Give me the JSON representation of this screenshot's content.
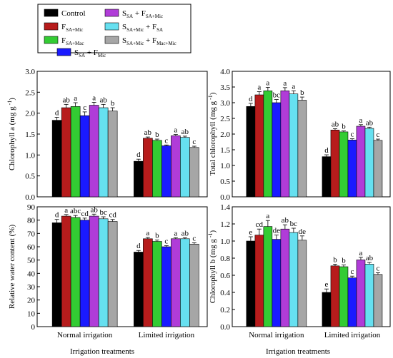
{
  "legend": {
    "entries": [
      {
        "text": "Control",
        "color": "#000000"
      },
      {
        "text": "F",
        "sub": "SA+Mic",
        "color": "#b71c1c"
      },
      {
        "text": "F",
        "sub": "SA+Mac",
        "color": "#33cc33"
      },
      {
        "text": "S",
        "sub": "SA",
        "text2": "+ F",
        "sub2": "Mic",
        "color": "#1a1aff"
      },
      {
        "text": "S",
        "sub": "SA",
        "text2": "+ F",
        "sub2": "SA+Mic",
        "color": "#b03cd8"
      },
      {
        "text": "S",
        "sub": "SA+Mic",
        "text2": "+ F",
        "sub2": "SA",
        "color": "#66e0f0"
      },
      {
        "text": "S",
        "sub": "SA+Mic",
        "text2": "+ F",
        "sub2": "Mac+Mic",
        "color": "#a6a6a6"
      }
    ]
  },
  "xlabel_left": "Irrigation treatments",
  "xlabel_right": "Irrigation treatments",
  "chart_data": [
    {
      "type": "bar",
      "ylabel": "Chlorophyll a (mg g -1)",
      "ylabel_main": "Chlorophyll a (mg g",
      "ylabel_sup": "-1",
      "ylabel_close": ")",
      "ylim": [
        0,
        3.0
      ],
      "yticks": [
        "0.0",
        "0.5",
        "1.0",
        "1.5",
        "2.0",
        "2.5",
        "3.0"
      ],
      "categories": [
        "Normal  irrigation",
        "Limited irrigation"
      ],
      "series": [
        {
          "name": "Control",
          "values": [
            1.83,
            0.85
          ],
          "errors": [
            0.07,
            0.05
          ],
          "labels": [
            "d",
            "d"
          ]
        },
        {
          "name": "FSA+Mic",
          "values": [
            2.13,
            1.4
          ],
          "errors": [
            0.08,
            0.03
          ],
          "labels": [
            "ab",
            "ab"
          ]
        },
        {
          "name": "FSA+Mac",
          "values": [
            2.16,
            1.35
          ],
          "errors": [
            0.09,
            0.03
          ],
          "labels": [
            "a",
            "b"
          ]
        },
        {
          "name": "SSA+FMic",
          "values": [
            1.94,
            1.22
          ],
          "errors": [
            0.09,
            0.02
          ],
          "labels": [
            "c",
            "c"
          ]
        },
        {
          "name": "SSA+FSA+Mic",
          "values": [
            2.19,
            1.46
          ],
          "errors": [
            0.07,
            0.03
          ],
          "labels": [
            "a",
            "a"
          ]
        },
        {
          "name": "SSA+Mic+FSA",
          "values": [
            2.13,
            1.42
          ],
          "errors": [
            0.08,
            0.03
          ],
          "labels": [
            "ab",
            "ab"
          ]
        },
        {
          "name": "SSA+Mic+FMac+Mic",
          "values": [
            2.05,
            1.18
          ],
          "errors": [
            0.08,
            0.03
          ],
          "labels": [
            "b",
            "c"
          ]
        }
      ]
    },
    {
      "type": "bar",
      "ylabel": "Total chlorophyll (mg g -1)",
      "ylabel_main": "Total chlorophyll (mg g",
      "ylabel_sup": "-1",
      "ylabel_close": ")",
      "ylim": [
        0,
        4.0
      ],
      "yticks": [
        "0.0",
        "0.5",
        "1.0",
        "1.5",
        "2.0",
        "2.5",
        "3.0",
        "3.5",
        "4.0"
      ],
      "categories": [
        "Normal  irrigation",
        "Limited irrigation"
      ],
      "series": [
        {
          "name": "Control",
          "values": [
            2.88,
            1.28
          ],
          "errors": [
            0.1,
            0.06
          ],
          "labels": [
            "d",
            "d"
          ]
        },
        {
          "name": "FSA+Mic",
          "values": [
            3.25,
            2.13
          ],
          "errors": [
            0.1,
            0.04
          ],
          "labels": [
            "a",
            "ab"
          ]
        },
        {
          "name": "FSA+Mac",
          "values": [
            3.38,
            2.07
          ],
          "errors": [
            0.11,
            0.03
          ],
          "labels": [
            "a",
            "b"
          ]
        },
        {
          "name": "SSA+FMic",
          "values": [
            3.0,
            1.81
          ],
          "errors": [
            0.1,
            0.04
          ],
          "labels": [
            "bc",
            "c"
          ]
        },
        {
          "name": "SSA+FSA+Mic",
          "values": [
            3.38,
            2.25
          ],
          "errors": [
            0.1,
            0.05
          ],
          "labels": [
            "a",
            "a"
          ]
        },
        {
          "name": "SSA+Mic+FSA",
          "values": [
            3.28,
            2.18
          ],
          "errors": [
            0.1,
            0.04
          ],
          "labels": [
            "a",
            "ab"
          ]
        },
        {
          "name": "SSA+Mic+FMac+Mic",
          "values": [
            3.08,
            1.8
          ],
          "errors": [
            0.1,
            0.04
          ],
          "labels": [
            "b",
            "c"
          ]
        }
      ]
    },
    {
      "type": "bar",
      "ylabel": "Relative water content (%)",
      "ylabel_main": "Relative water content (%)",
      "ylabel_sup": "",
      "ylabel_close": "",
      "ylim": [
        0,
        90
      ],
      "yticks": [
        "0",
        "10",
        "20",
        "30",
        "40",
        "50",
        "60",
        "70",
        "80",
        "90"
      ],
      "categories": [
        "Normal  irrigation",
        "Limited irrigation"
      ],
      "series": [
        {
          "name": "Control",
          "values": [
            78,
            56
          ],
          "errors": [
            2.5,
            1.2
          ],
          "labels": [
            "d",
            "d"
          ]
        },
        {
          "name": "FSA+Mic",
          "values": [
            83,
            66
          ],
          "errors": [
            1.2,
            1.0
          ],
          "labels": [
            "a",
            "a"
          ]
        },
        {
          "name": "FSA+Mac",
          "values": [
            82,
            64
          ],
          "errors": [
            1.5,
            1.0
          ],
          "labels": [
            "abc",
            "b"
          ]
        },
        {
          "name": "SSA+FMic",
          "values": [
            80,
            60
          ],
          "errors": [
            1.5,
            0.8
          ],
          "labels": [
            "cd",
            "c"
          ]
        },
        {
          "name": "SSA+FSA+Mic",
          "values": [
            83,
            66
          ],
          "errors": [
            1.5,
            0.8
          ],
          "labels": [
            "ab",
            "a"
          ]
        },
        {
          "name": "SSA+Mic+FSA",
          "values": [
            81,
            66
          ],
          "errors": [
            1.5,
            0.8
          ],
          "labels": [
            "bc",
            "ab"
          ]
        },
        {
          "name": "SSA+Mic+FMac+Mic",
          "values": [
            79,
            62
          ],
          "errors": [
            1.5,
            1.0
          ],
          "labels": [
            "cd",
            "c"
          ]
        }
      ]
    },
    {
      "type": "bar",
      "ylabel": "Chlorophyll b (mg g -1)",
      "ylabel_main": "Chlorophyll b (mg g",
      "ylabel_sup": "-1",
      "ylabel_close": ")",
      "ylim": [
        0,
        1.4
      ],
      "yticks": [
        "0.0",
        "0.2",
        "0.4",
        "0.6",
        "0.8",
        "1.0",
        "1.2",
        "1.4"
      ],
      "categories": [
        "Normal  irrigation",
        "Limited irrigation"
      ],
      "series": [
        {
          "name": "Control",
          "values": [
            1.0,
            0.4
          ],
          "errors": [
            0.05,
            0.04
          ],
          "labels": [
            "e",
            "e"
          ]
        },
        {
          "name": "FSA+Mic",
          "values": [
            1.07,
            0.71
          ],
          "errors": [
            0.07,
            0.02
          ],
          "labels": [
            "cd",
            "b"
          ]
        },
        {
          "name": "FSA+Mac",
          "values": [
            1.17,
            0.7
          ],
          "errors": [
            0.07,
            0.02
          ],
          "labels": [
            "a",
            "b"
          ]
        },
        {
          "name": "SSA+FMic",
          "values": [
            1.02,
            0.57
          ],
          "errors": [
            0.05,
            0.02
          ],
          "labels": [
            "de",
            "c"
          ]
        },
        {
          "name": "SSA+FSA+Mic",
          "values": [
            1.14,
            0.78
          ],
          "errors": [
            0.05,
            0.03
          ],
          "labels": [
            "ab",
            "a"
          ]
        },
        {
          "name": "SSA+Mic+FSA",
          "values": [
            1.1,
            0.73
          ],
          "errors": [
            0.05,
            0.02
          ],
          "labels": [
            "bc",
            "ab"
          ]
        },
        {
          "name": "SSA+Mic+FMac+Mic",
          "values": [
            1.01,
            0.61
          ],
          "errors": [
            0.05,
            0.02
          ],
          "labels": [
            "de",
            "c"
          ]
        }
      ]
    }
  ]
}
